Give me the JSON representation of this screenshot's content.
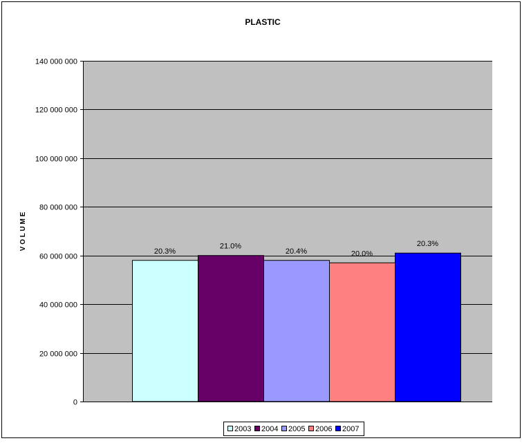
{
  "chart_data": {
    "type": "bar",
    "title": "PLASTIC",
    "xlabel": "",
    "ylabel": "V O L U M E",
    "ylim": [
      0,
      140000000
    ],
    "yticks": [
      0,
      20000000,
      40000000,
      60000000,
      80000000,
      100000000,
      120000000,
      140000000
    ],
    "ytick_labels": [
      "0",
      "20 000 000",
      "40 000 000",
      "60 000 000",
      "80 000 000",
      "100 000 000",
      "120 000 000",
      "140 000 000"
    ],
    "grid": true,
    "legend_position": "bottom",
    "series": [
      {
        "name": "2003",
        "value": 58000000,
        "label": "20.3%",
        "color": "#ccffff"
      },
      {
        "name": "2004",
        "value": 60000000,
        "label": "21.0%",
        "color": "#660066"
      },
      {
        "name": "2005",
        "value": 58000000,
        "label": "20.4%",
        "color": "#9999ff"
      },
      {
        "name": "2006",
        "value": 57000000,
        "label": "20.0%",
        "color": "#ff8080"
      },
      {
        "name": "2007",
        "value": 61000000,
        "label": "20.3%",
        "color": "#0000ff"
      }
    ],
    "plot_background": "#c0c0c0"
  }
}
